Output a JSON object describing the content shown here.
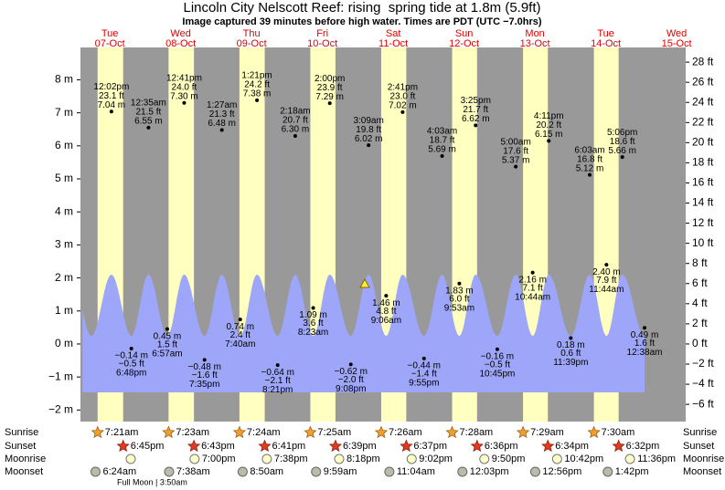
{
  "chart_data": {
    "type": "tide",
    "title": "Lincoln City Nelscott Reef: rising  spring tide at 1.8m (5.9ft)",
    "subtitle": "Image captured 39 minutes before high water. Times are PDT (UTC −7.0hrs)",
    "ylim": [
      -2.35,
      8.98
    ],
    "yticks": [
      {
        "value": 8,
        "label": "8 m"
      },
      {
        "value": 7,
        "label": "7 m"
      },
      {
        "value": 6,
        "label": "6 m"
      },
      {
        "value": 5,
        "label": "5 m"
      },
      {
        "value": 4,
        "label": "4 m"
      },
      {
        "value": 3,
        "label": "3 m"
      },
      {
        "value": 2,
        "label": "2 m"
      },
      {
        "value": 1,
        "label": "1 m"
      },
      {
        "value": 0,
        "label": "0 m"
      },
      {
        "value": -1,
        "label": "−1 m"
      },
      {
        "value": -2,
        "label": "−2 m"
      }
    ],
    "y2lim": [
      -7.71,
      29.46
    ],
    "y2ticks": [
      {
        "value": 28,
        "label": "28 ft"
      },
      {
        "value": 26,
        "label": "26 ft"
      },
      {
        "value": 24,
        "label": "24 ft"
      },
      {
        "value": 22,
        "label": "22 ft"
      },
      {
        "value": 20,
        "label": "20 ft"
      },
      {
        "value": 18,
        "label": "18 ft"
      },
      {
        "value": 16,
        "label": "16 ft"
      },
      {
        "value": 14,
        "label": "14 ft"
      },
      {
        "value": 12,
        "label": "12 ft"
      },
      {
        "value": 10,
        "label": "10 ft"
      },
      {
        "value": 8,
        "label": "8 ft"
      },
      {
        "value": 6,
        "label": "6 ft"
      },
      {
        "value": 4,
        "label": "4 ft"
      },
      {
        "value": 2,
        "label": "2 ft"
      },
      {
        "value": 0,
        "label": "0 ft"
      },
      {
        "value": -2,
        "label": "−2 ft"
      },
      {
        "value": -4,
        "label": "−4 ft"
      },
      {
        "value": -6,
        "label": "−6 ft"
      }
    ],
    "row_labels": [
      "Sunrise",
      "Sunset",
      "Moonrise",
      "Moonset"
    ],
    "moon_phase": "Full Moon | 3:50am",
    "days": [
      {
        "name": "Tue",
        "date": "07-Oct",
        "sunrise": "7:21am",
        "sunset": "6:45pm",
        "moonset": "6:24am",
        "tides": [
          {
            "time": "12:02pm",
            "ft": "23.1 ft",
            "value": 7.04,
            "value_label": "7.04 m"
          },
          {
            "time": "6:48pm",
            "ft": "−0.5 ft",
            "value": -0.14,
            "value_label": "−0.14 m"
          }
        ]
      },
      {
        "name": "Wed",
        "date": "08-Oct",
        "sunrise": "7:23am",
        "sunset": "6:43pm",
        "moonrise": "7:00pm",
        "moonset": "7:38am",
        "tides": [
          {
            "time": "12:35am",
            "ft": "21.5 ft",
            "value": 6.55,
            "value_label": "6.55 m"
          },
          {
            "time": "6:57am",
            "ft": "1.5 ft",
            "value": 0.45,
            "value_label": "0.45 m"
          },
          {
            "time": "12:41pm",
            "ft": "24.0 ft",
            "value": 7.3,
            "value_label": "7.30 m"
          },
          {
            "time": "7:35pm",
            "ft": "−1.6 ft",
            "value": -0.48,
            "value_label": "−0.48 m"
          }
        ]
      },
      {
        "name": "Thu",
        "date": "09-Oct",
        "sunrise": "7:24am",
        "sunset": "6:41pm",
        "moonrise": "7:38pm",
        "moonset": "8:50am",
        "tides": [
          {
            "time": "1:27am",
            "ft": "21.3 ft",
            "value": 6.48,
            "value_label": "6.48 m"
          },
          {
            "time": "7:40am",
            "ft": "2.4 ft",
            "value": 0.74,
            "value_label": "0.74 m"
          },
          {
            "time": "1:21pm",
            "ft": "24.2 ft",
            "value": 7.38,
            "value_label": "7.38 m"
          },
          {
            "time": "8:21pm",
            "ft": "−2.1 ft",
            "value": -0.64,
            "value_label": "−0.64 m"
          }
        ]
      },
      {
        "name": "Fri",
        "date": "10-Oct",
        "sunrise": "7:25am",
        "sunset": "6:39pm",
        "moonrise": "8:18pm",
        "moonset": "9:59am",
        "tides": [
          {
            "time": "2:18am",
            "ft": "20.7 ft",
            "value": 6.3,
            "value_label": "6.30 m"
          },
          {
            "time": "8:23am",
            "ft": "3.6 ft",
            "value": 1.09,
            "value_label": "1.09 m"
          },
          {
            "time": "2:00pm",
            "ft": "23.9 ft",
            "value": 7.29,
            "value_label": "7.29 m"
          },
          {
            "time": "9:08pm",
            "ft": "−2.0 ft",
            "value": -0.62,
            "value_label": "−0.62 m"
          }
        ]
      },
      {
        "name": "Sat",
        "date": "11-Oct",
        "sunrise": "7:26am",
        "sunset": "6:37pm",
        "moonrise": "9:02pm",
        "moonset": "11:04am",
        "tides": [
          {
            "time": "3:09am",
            "ft": "19.8 ft",
            "value": 6.02,
            "value_label": "6.02 m"
          },
          {
            "time": "9:06am",
            "ft": "4.8 ft",
            "value": 1.46,
            "value_label": "1.46 m"
          },
          {
            "time": "2:41pm",
            "ft": "23.0 ft",
            "value": 7.02,
            "value_label": "7.02 m"
          },
          {
            "time": "9:55pm",
            "ft": "−1.4 ft",
            "value": -0.44,
            "value_label": "−0.44 m"
          }
        ]
      },
      {
        "name": "Sun",
        "date": "12-Oct",
        "sunrise": "7:28am",
        "sunset": "6:36pm",
        "moonrise": "9:50pm",
        "moonset": "12:03pm",
        "tides": [
          {
            "time": "4:03am",
            "ft": "18.7 ft",
            "value": 5.69,
            "value_label": "5.69 m"
          },
          {
            "time": "9:53am",
            "ft": "6.0 ft",
            "value": 1.83,
            "value_label": "1.83 m"
          },
          {
            "time": "3:25pm",
            "ft": "21.7 ft",
            "value": 6.62,
            "value_label": "6.62 m"
          },
          {
            "time": "10:45pm",
            "ft": "−0.5 ft",
            "value": -0.16,
            "value_label": "−0.16 m"
          }
        ]
      },
      {
        "name": "Mon",
        "date": "13-Oct",
        "sunrise": "7:29am",
        "sunset": "6:34pm",
        "moonrise": "10:42pm",
        "moonset": "12:56pm",
        "tides": [
          {
            "time": "5:00am",
            "ft": "17.6 ft",
            "value": 5.37,
            "value_label": "5.37 m"
          },
          {
            "time": "10:44am",
            "ft": "7.1 ft",
            "value": 2.16,
            "value_label": "2.16 m"
          },
          {
            "time": "4:11pm",
            "ft": "20.2 ft",
            "value": 6.15,
            "value_label": "6.15 m"
          },
          {
            "time": "11:39pm",
            "ft": "0.6 ft",
            "value": 0.18,
            "value_label": "0.18 m"
          }
        ]
      },
      {
        "name": "Tue",
        "date": "14-Oct",
        "sunrise": "7:30am",
        "sunset": "6:32pm",
        "moonrise": "11:36pm",
        "moonset": "1:42pm",
        "tides": [
          {
            "time": "6:03am",
            "ft": "16.8 ft",
            "value": 5.12,
            "value_label": "5.12 m"
          },
          {
            "time": "11:44am",
            "ft": "7.9 ft",
            "value": 2.4,
            "value_label": "2.40 m"
          },
          {
            "time": "5:06pm",
            "ft": "18.6 ft",
            "value": 5.66,
            "value_label": "5.66 m"
          }
        ]
      },
      {
        "name": "Wed",
        "date": "15-Oct",
        "tides": [
          {
            "time": "12:38am",
            "ft": "1.6 ft",
            "value": 0.49,
            "value_label": "0.49 m"
          }
        ]
      }
    ]
  }
}
